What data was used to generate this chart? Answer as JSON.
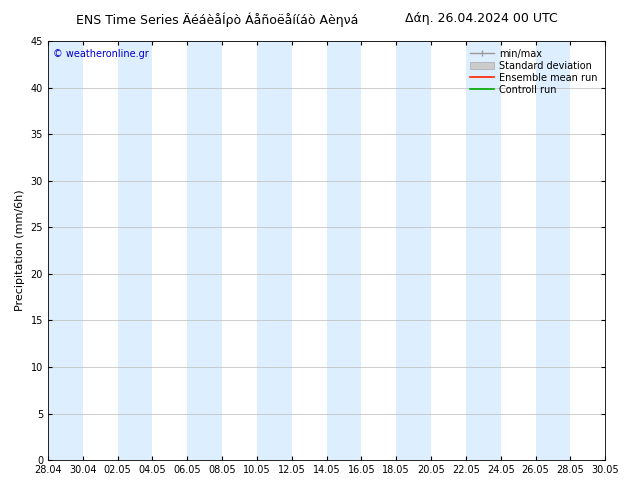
{
  "title_left": "ENS Time Series ÄéáèåÍρò Áåñοëåíίáò Αèηνá",
  "title_right": "Δάη. 26.04.2024 00 UTC",
  "ylabel": "Precipitation (mm/6h)",
  "watermark": "© weatheronline.gr",
  "ylim": [
    0,
    45
  ],
  "yticks": [
    0,
    5,
    10,
    15,
    20,
    25,
    30,
    35,
    40,
    45
  ],
  "x_labels": [
    "28.04",
    "30.04",
    "02.05",
    "04.05",
    "06.05",
    "08.05",
    "10.05",
    "12.05",
    "14.05",
    "16.05",
    "18.05",
    "20.05",
    "22.05",
    "24.05",
    "26.05",
    "28.05",
    "30.05"
  ],
  "band_color": "#ddeeff",
  "bg_color": "#ffffff",
  "plot_bg_color": "#ffffff",
  "title_fontsize": 9,
  "tick_fontsize": 7,
  "label_fontsize": 8,
  "watermark_color": "#0000cc",
  "legend_fontsize": 7
}
